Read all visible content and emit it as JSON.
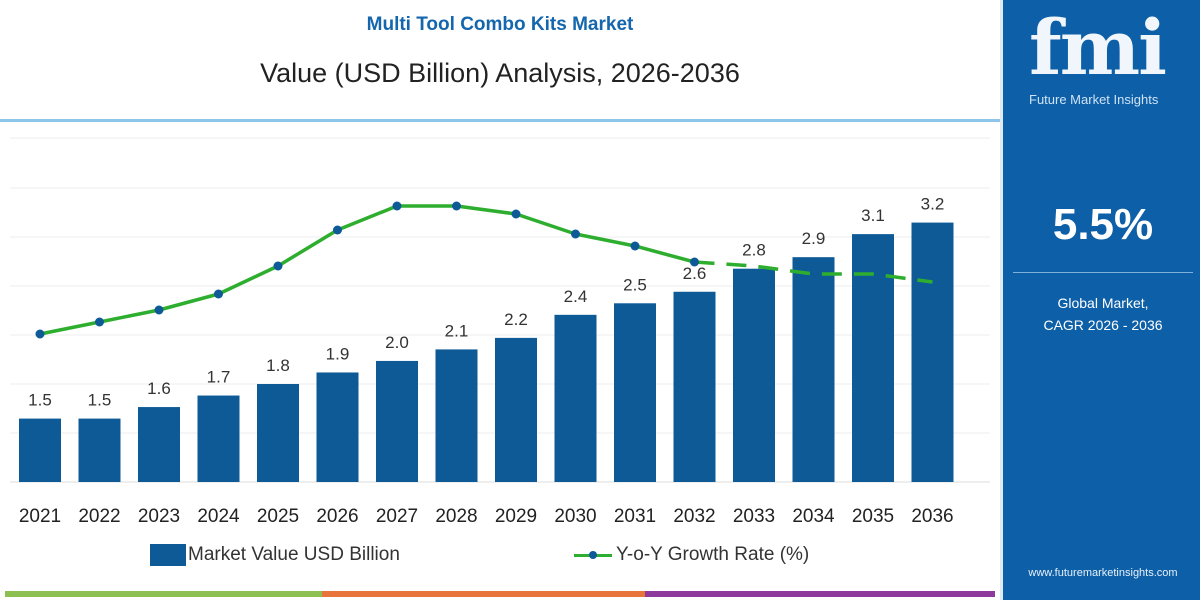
{
  "header": {
    "title": "Multi Tool Combo Kits Market",
    "subtitle": "Value (USD Billion) Analysis, 2026-2036"
  },
  "side_panel": {
    "logo_text": "fmi",
    "logo_sub": "Future Market Insights",
    "cagr_value": "5.5%",
    "cagr_label_1": "Global Market,",
    "cagr_label_2": "CAGR 2026 - 2036",
    "website": "www.futuremarketinsights.com",
    "background": "#0d5fa7"
  },
  "legend": {
    "bars": "Market Value USD Billion",
    "line": "Y-o-Y Growth Rate (%)"
  },
  "colors": {
    "bar": "#0d5a96",
    "line": "#2eae2e",
    "marker": "#0d5a96",
    "strip": [
      "#8cc152",
      "#e8743b",
      "#8e3a9c"
    ]
  },
  "chart_data": {
    "type": "bar",
    "categories": [
      "2021",
      "2022",
      "2023",
      "2024",
      "2025",
      "2026",
      "2027",
      "2028",
      "2029",
      "2030",
      "2031",
      "2032",
      "2033",
      "2034",
      "2035",
      "2036"
    ],
    "series": [
      {
        "name": "Market Value USD Billion",
        "type": "bar",
        "values": [
          1.5,
          1.5,
          1.6,
          1.7,
          1.8,
          1.9,
          2.0,
          2.1,
          2.2,
          2.4,
          2.5,
          2.6,
          2.8,
          2.9,
          3.1,
          3.2
        ],
        "labels": [
          "1.5",
          "1.5",
          "1.6",
          "1.7",
          "1.8",
          "1.9",
          "2.0",
          "2.1",
          "2.2",
          "2.4",
          "2.5",
          "2.6",
          "2.8",
          "2.9",
          "3.1",
          "3.2"
        ]
      },
      {
        "name": "Y-o-Y Growth Rate (%)",
        "type": "line",
        "values": [
          4.6,
          4.9,
          5.2,
          5.6,
          6.3,
          7.2,
          7.8,
          7.8,
          7.6,
          7.1,
          6.8,
          6.4,
          6.3,
          6.1,
          6.1,
          5.9
        ],
        "dashed_from": "2032"
      }
    ],
    "ylim": [
      0,
      3.2
    ],
    "grid": true,
    "legend_position": "bottom"
  }
}
